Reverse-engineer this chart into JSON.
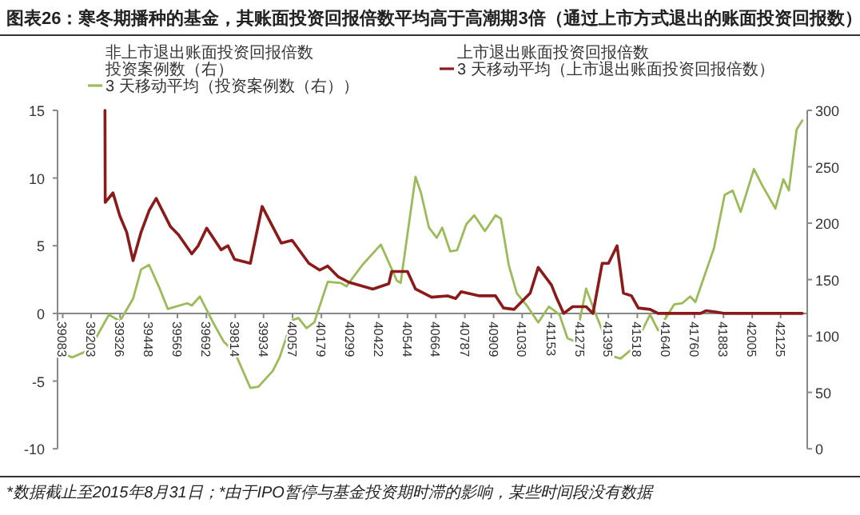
{
  "chart_data": {
    "type": "line",
    "title": "图表26：寒冬期播种的基金，其账面投资回报倍数平均高于高潮期3倍（通过上市方式退出的账面投资回报数）",
    "annotations": [
      "*数据截止至2015年8月31日；*由于IPO暂停与基金投资期时滞的影响，某些时间段没有数据"
    ],
    "xlim": [
      39061,
      42238
    ],
    "xticks": [
      39083,
      39203,
      39326,
      39448,
      39569,
      39692,
      39814,
      39934,
      40057,
      40179,
      40299,
      40422,
      40544,
      40664,
      40787,
      40909,
      41030,
      41153,
      41275,
      41395,
      41518,
      41640,
      41760,
      41883,
      42005,
      42125
    ],
    "ylim": [
      -10,
      15
    ],
    "yticks": [
      -10,
      -5,
      0,
      5,
      10,
      15
    ],
    "y2lim": [
      0,
      300
    ],
    "y2ticks": [
      0,
      50,
      100,
      150,
      200,
      250,
      300
    ],
    "legend": "top",
    "grid": false,
    "series": [
      {
        "name": "非上市退出账面投资回报倍数"
      },
      {
        "name": "投资案例数（右）",
        "axis": "y2"
      },
      {
        "name": "3 天移动平均（投资案例数（右））",
        "axis": "y2",
        "color": "#9bbb59",
        "x": [
          39083,
          39122,
          39178,
          39223,
          39279,
          39325,
          39381,
          39415,
          39449,
          39494,
          39528,
          39562,
          39611,
          39630,
          39664,
          39720,
          39765,
          39811,
          39878,
          39912,
          39973,
          40002,
          40055,
          40082,
          40116,
          40149,
          40206,
          40262,
          40285,
          40353,
          40431,
          40499,
          40515,
          40578,
          40601,
          40635,
          40668,
          40691,
          40725,
          40754,
          40793,
          40827,
          40872,
          40917,
          40940,
          40973,
          41007,
          41053,
          41098,
          41143,
          41188,
          41222,
          41256,
          41301,
          41335,
          41369,
          41396,
          41447,
          41504,
          41572,
          41606,
          41674,
          41708,
          41742,
          41764,
          41843,
          41888,
          41922,
          41956,
          42012,
          42046,
          42103,
          42137,
          42160,
          42193,
          42217
        ],
        "values": [
          85,
          81,
          86,
          98,
          119,
          113,
          133,
          159,
          163,
          142,
          124,
          126,
          129,
          127,
          135,
          112,
          95,
          86,
          54,
          55,
          69,
          81,
          114,
          116,
          107,
          112,
          148,
          147,
          144,
          163,
          181,
          149,
          147,
          241,
          227,
          196,
          187,
          196,
          175,
          176,
          199,
          207,
          193,
          207,
          204,
          163,
          138,
          126,
          112,
          126,
          119,
          98,
          95,
          142,
          123,
          105,
          83,
          80,
          90,
          119,
          105,
          128,
          129,
          135,
          130,
          178,
          225,
          229,
          210,
          248,
          234,
          213,
          239,
          229,
          283,
          291
        ]
      },
      {
        "name": "上市退出账面投资回报倍数"
      },
      {
        "name": "3 天移动平均（上市退出账面投资回报倍数）",
        "color": "#8b1a1a",
        "x": [
          39262,
          39263,
          39296,
          39325,
          39354,
          39381,
          39415,
          39449,
          39479,
          39540,
          39574,
          39630,
          39657,
          39693,
          39754,
          39783,
          39811,
          39878,
          39928,
          39973,
          40009,
          40055,
          40126,
          40172,
          40206,
          40251,
          40296,
          40397,
          40465,
          40477,
          40544,
          40578,
          40646,
          40714,
          40748,
          40771,
          40849,
          40917,
          40951,
          40996,
          41064,
          41098,
          41154,
          41177,
          41206,
          41244,
          41301,
          41330,
          41369,
          41396,
          41432,
          41459,
          41493,
          41522,
          41572,
          41606,
          41786,
          41809,
          41854,
          41888,
          42217
        ],
        "values": [
          15,
          8.2,
          8.9,
          7.2,
          6.0,
          3.9,
          6.0,
          7.6,
          8.5,
          6.4,
          5.8,
          4.4,
          5.0,
          6.3,
          4.7,
          5.0,
          4.0,
          3.7,
          7.9,
          6.4,
          5.2,
          5.4,
          3.7,
          3.2,
          3.5,
          2.7,
          2.3,
          1.8,
          2.2,
          3.1,
          3.1,
          1.8,
          1.2,
          1.3,
          1.1,
          1.6,
          1.3,
          1.3,
          0.4,
          0.3,
          1.5,
          3.4,
          2.1,
          1.1,
          0,
          0.5,
          0.5,
          0,
          3.7,
          3.7,
          5.0,
          1.5,
          1.3,
          0.4,
          0.3,
          0,
          0,
          0.2,
          0.1,
          0,
          0
        ]
      }
    ]
  }
}
